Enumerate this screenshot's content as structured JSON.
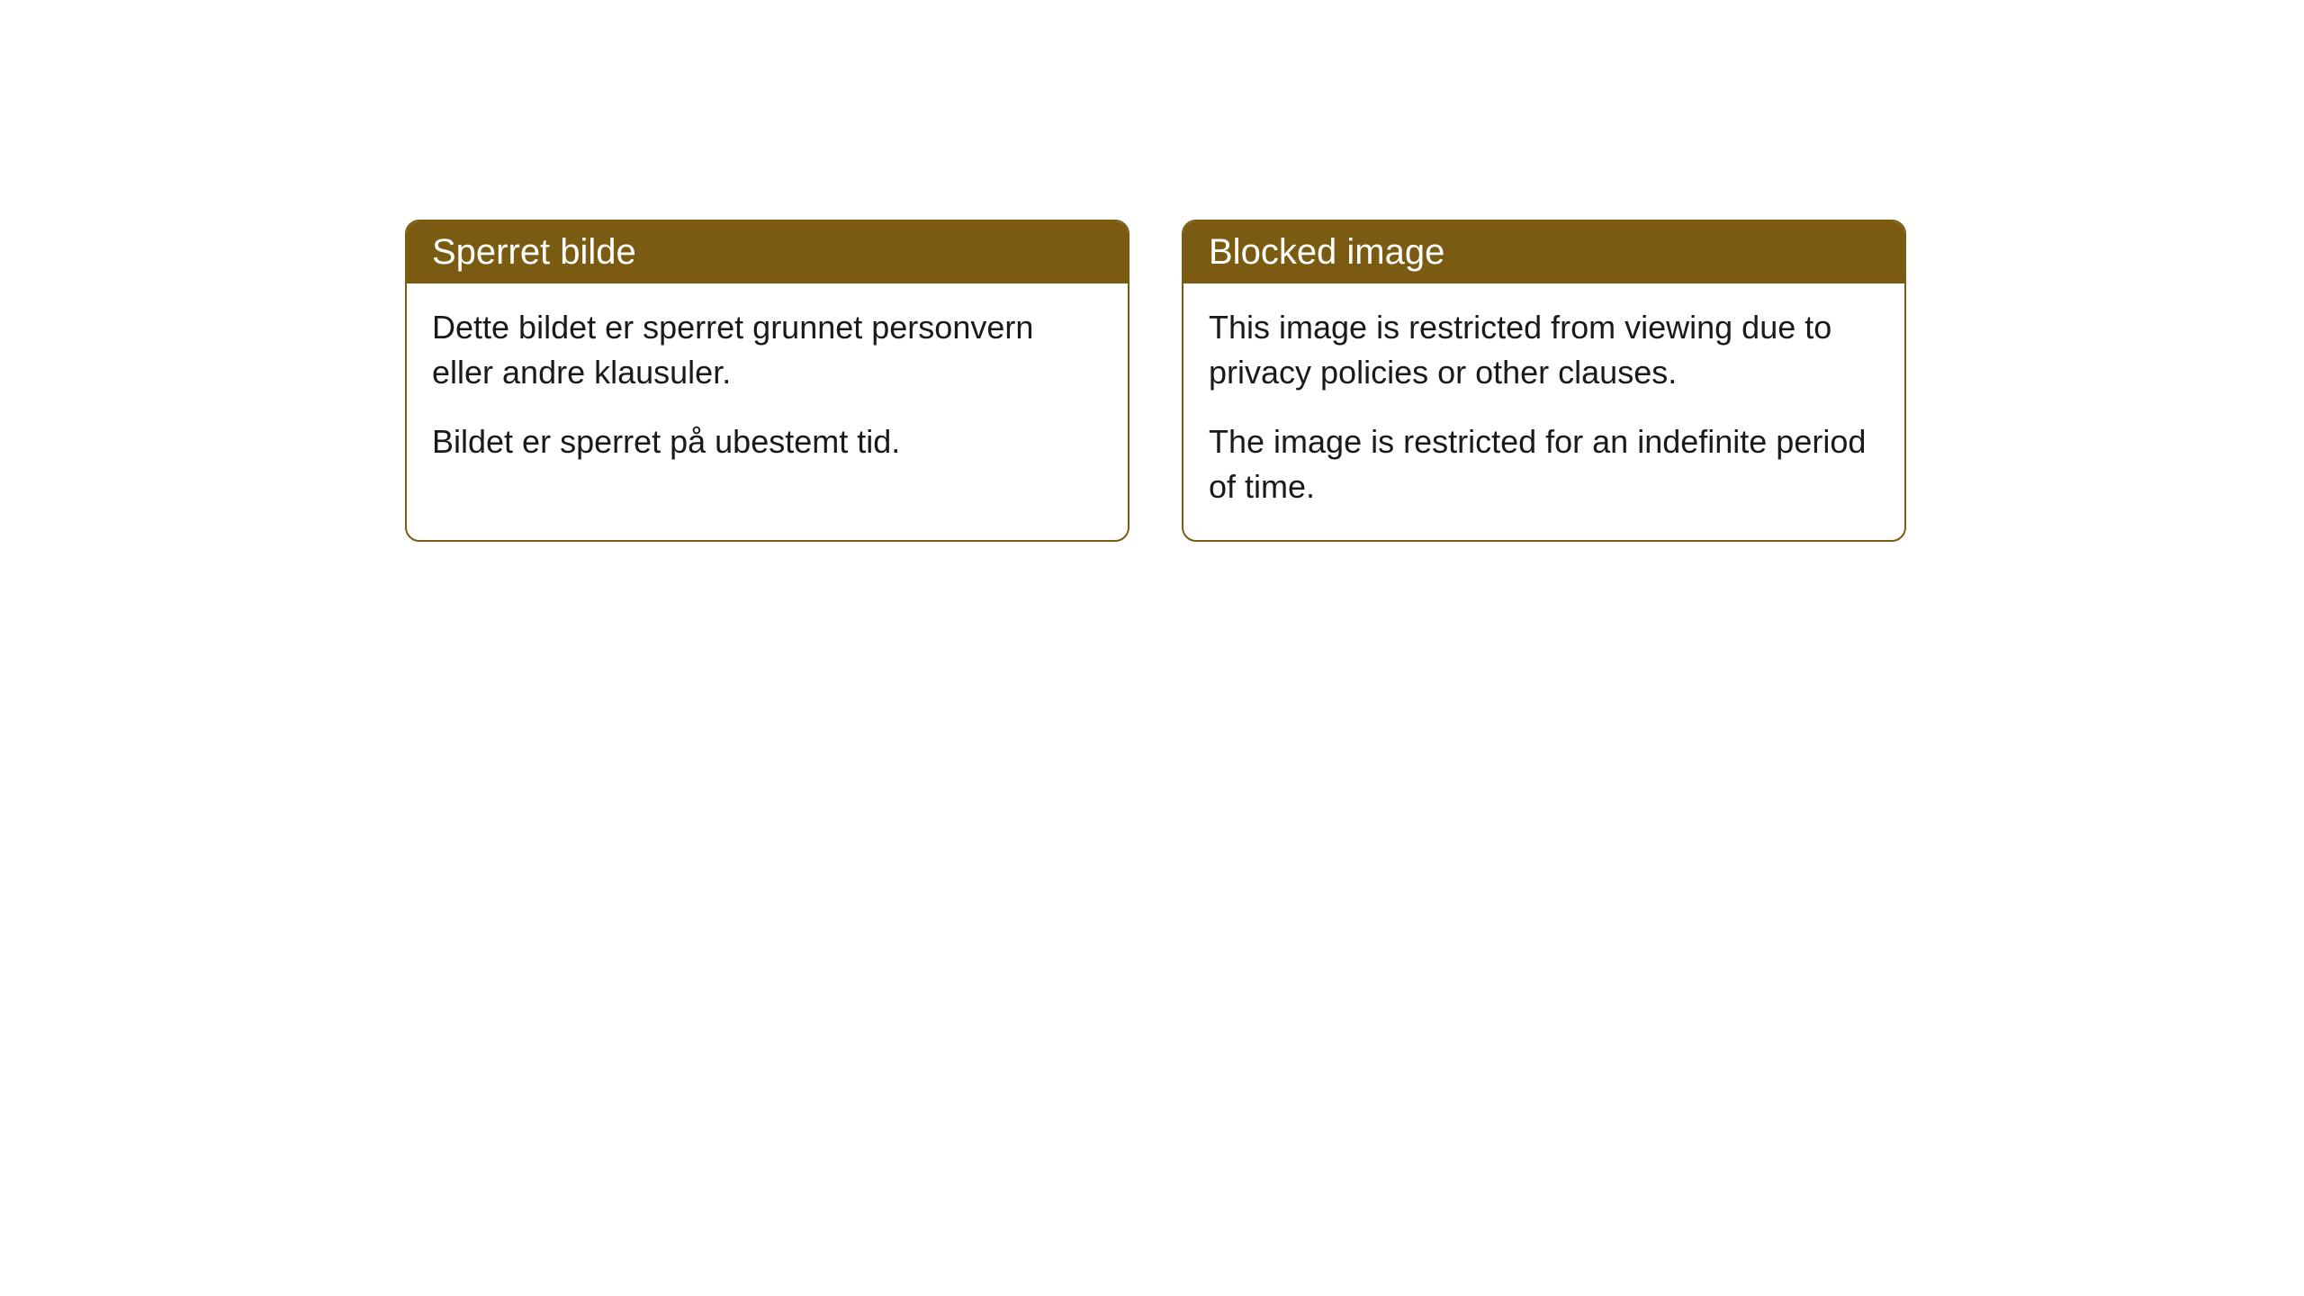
{
  "cards": [
    {
      "title": "Sperret bilde",
      "paragraph1": "Dette bildet er sperret grunnet personvern eller andre klausuler.",
      "paragraph2": "Bildet er sperret på ubestemt tid."
    },
    {
      "title": "Blocked image",
      "paragraph1": "This image is restricted from viewing due to privacy policies or other clauses.",
      "paragraph2": "The image is restricted for an indefinite period of time."
    }
  ],
  "styling": {
    "header_background": "#7a5b11",
    "header_text_color": "#ffffff",
    "border_color": "#7a5b11",
    "body_text_color": "#1a1a1a",
    "card_background": "#ffffff",
    "page_background": "#ffffff",
    "border_radius": 16,
    "header_fontsize": 40,
    "body_fontsize": 36
  }
}
